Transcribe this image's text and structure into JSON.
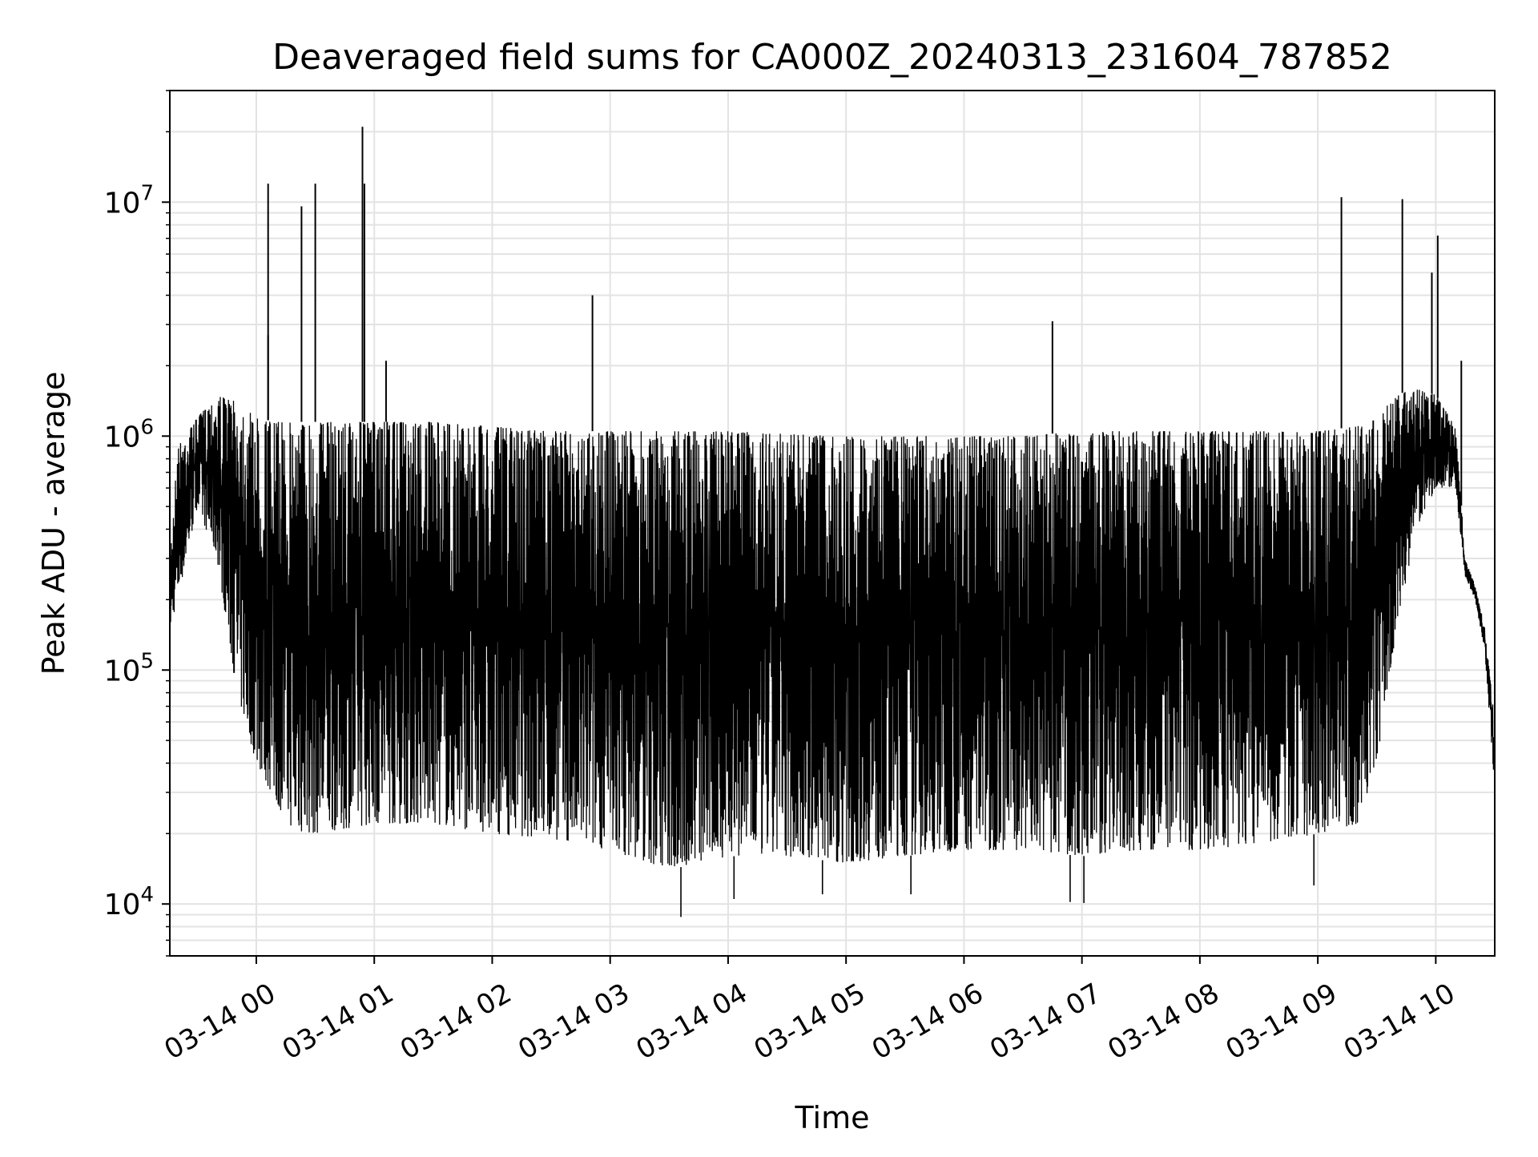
{
  "chart_data": {
    "type": "line",
    "title": "Deaveraged field sums for CA000Z_20240313_231604_787852",
    "xlabel": "Time",
    "ylabel": "Peak ADU - average",
    "y_scale": "log",
    "ylim": [
      6000,
      30000000
    ],
    "xlim": [
      "2024-03-13 23:16",
      "2024-03-14 10:30"
    ],
    "grid": true,
    "line_color": "#000000",
    "x_ticks": [
      "2024-03-14 00:00",
      "2024-03-14 01:00",
      "2024-03-14 02:00",
      "2024-03-14 03:00",
      "2024-03-14 04:00",
      "2024-03-14 05:00",
      "2024-03-14 06:00",
      "2024-03-14 07:00",
      "2024-03-14 08:00",
      "2024-03-14 09:00",
      "2024-03-14 10:00"
    ],
    "x_tick_labels": [
      "03-14 00",
      "03-14 01",
      "03-14 02",
      "03-14 03",
      "03-14 04",
      "03-14 05",
      "03-14 06",
      "03-14 07",
      "03-14 08",
      "03-14 09",
      "03-14 10"
    ],
    "y_ticks": [
      10000,
      100000,
      1000000,
      10000000
    ],
    "y_tick_labels": [
      {
        "base": "10",
        "exp": "4"
      },
      {
        "base": "10",
        "exp": "5"
      },
      {
        "base": "10",
        "exp": "6"
      },
      {
        "base": "10",
        "exp": "7"
      }
    ],
    "envelope": {
      "x": [
        "2024-03-13 23:16",
        "2024-03-13 23:20",
        "2024-03-13 23:30",
        "2024-03-13 23:40",
        "2024-03-13 23:50",
        "2024-03-14 00:00",
        "2024-03-14 00:10",
        "2024-03-14 00:20",
        "2024-03-14 00:30",
        "2024-03-14 01:00",
        "2024-03-14 01:30",
        "2024-03-14 02:00",
        "2024-03-14 02:30",
        "2024-03-14 03:00",
        "2024-03-14 03:30",
        "2024-03-14 04:00",
        "2024-03-14 04:30",
        "2024-03-14 05:00",
        "2024-03-14 05:30",
        "2024-03-14 06:00",
        "2024-03-14 06:30",
        "2024-03-14 07:00",
        "2024-03-14 07:30",
        "2024-03-14 08:00",
        "2024-03-14 08:30",
        "2024-03-14 09:00",
        "2024-03-14 09:20",
        "2024-03-14 09:30",
        "2024-03-14 09:40",
        "2024-03-14 09:50",
        "2024-03-14 10:00",
        "2024-03-14 10:10",
        "2024-03-14 10:15",
        "2024-03-14 10:20",
        "2024-03-14 10:25",
        "2024-03-14 10:30"
      ],
      "upper": [
        300000,
        900000,
        1200000,
        1500000,
        1400000,
        1200000,
        1150000,
        1150000,
        1150000,
        1150000,
        1150000,
        1100000,
        1050000,
        1050000,
        1050000,
        1050000,
        1020000,
        1000000,
        1000000,
        1000000,
        1000000,
        1050000,
        1050000,
        1050000,
        1050000,
        1050000,
        1100000,
        1200000,
        1500000,
        1600000,
        1500000,
        1100000,
        300000,
        230000,
        150000,
        60000
      ],
      "lower": [
        150000,
        200000,
        500000,
        300000,
        80000,
        40000,
        27000,
        20000,
        20000,
        22000,
        22000,
        20000,
        19000,
        17000,
        14000,
        16000,
        16000,
        15000,
        16000,
        17000,
        17000,
        16000,
        17000,
        17000,
        18000,
        20000,
        22000,
        40000,
        150000,
        400000,
        600000,
        600000,
        250000,
        200000,
        120000,
        30000
      ]
    },
    "spikes": [
      {
        "x": "2024-03-14 00:06",
        "y": 12000000
      },
      {
        "x": "2024-03-14 00:23",
        "y": 9600000
      },
      {
        "x": "2024-03-14 00:30",
        "y": 12000000
      },
      {
        "x": "2024-03-14 00:54",
        "y": 21000000
      },
      {
        "x": "2024-03-14 00:55",
        "y": 12000000
      },
      {
        "x": "2024-03-14 01:06",
        "y": 2100000
      },
      {
        "x": "2024-03-14 00:06",
        "y": 2700000
      },
      {
        "x": "2024-03-14 02:51",
        "y": 4000000
      },
      {
        "x": "2024-03-14 06:45",
        "y": 3100000
      },
      {
        "x": "2024-03-14 09:12",
        "y": 10500000
      },
      {
        "x": "2024-03-14 09:43",
        "y": 10300000
      },
      {
        "x": "2024-03-14 09:58",
        "y": 5000000
      },
      {
        "x": "2024-03-14 10:01",
        "y": 7200000
      },
      {
        "x": "2024-03-14 10:13",
        "y": 2100000
      }
    ],
    "dips": [
      {
        "x": "2024-03-14 03:36",
        "y": 8800
      },
      {
        "x": "2024-03-14 04:03",
        "y": 10500
      },
      {
        "x": "2024-03-14 04:48",
        "y": 11000
      },
      {
        "x": "2024-03-14 05:33",
        "y": 11000
      },
      {
        "x": "2024-03-14 06:54",
        "y": 10200
      },
      {
        "x": "2024-03-14 07:01",
        "y": 10100
      },
      {
        "x": "2024-03-14 08:58",
        "y": 12000
      }
    ]
  }
}
